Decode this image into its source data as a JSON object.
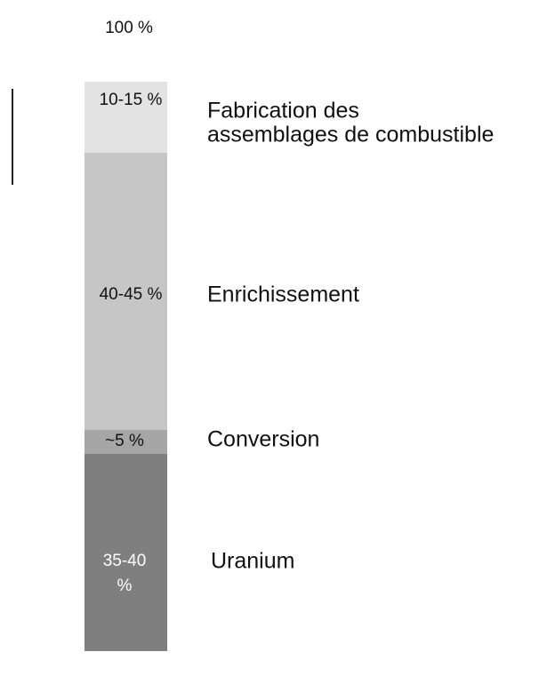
{
  "top_label": "100 %",
  "segments": [
    {
      "percent_lines": [
        "10-15 %"
      ],
      "name_lines": [
        "Fabrication des",
        "assemblages de combustible"
      ]
    },
    {
      "percent_lines": [
        "40-45 %"
      ],
      "name_lines": [
        "Enrichissement"
      ]
    },
    {
      "percent_lines": [
        "~5 %"
      ],
      "name_lines": [
        "Conversion"
      ]
    },
    {
      "percent_lines": [
        "35-40",
        "%"
      ],
      "name_lines": [
        "Uranium"
      ]
    }
  ]
}
